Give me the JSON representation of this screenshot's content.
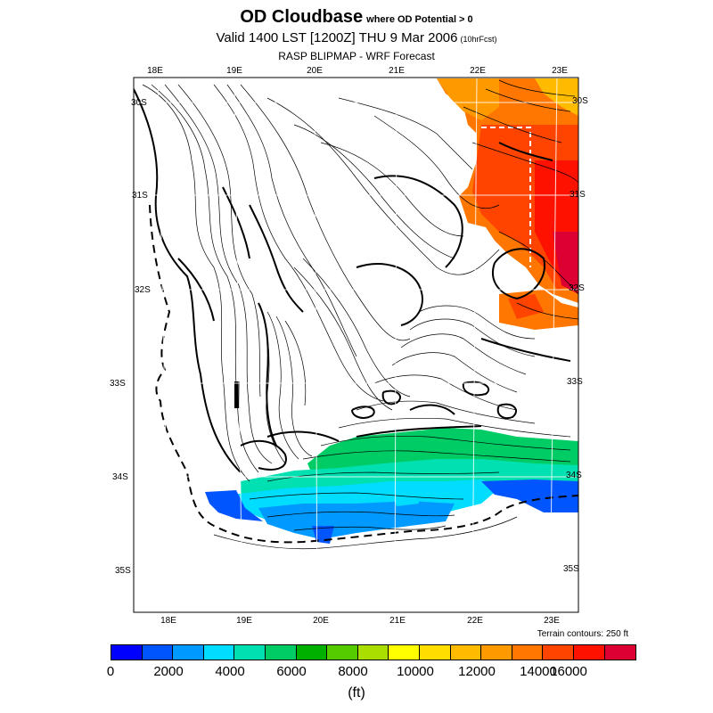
{
  "title": {
    "main": "OD Cloudbase",
    "qualifier": "where OD Potential > 0",
    "valid": "Valid 1400 LST [1200Z] THU 9 Mar 2006",
    "fcst": "(10hrFcst)",
    "source": "RASP BLIPMAP - WRF Forecast"
  },
  "axes": {
    "top_longitudes": [
      "18E",
      "19E",
      "20E",
      "21E",
      "22E",
      "23E"
    ],
    "bottom_longitudes": [
      "18E",
      "19E",
      "20E",
      "21E",
      "22E",
      "23E"
    ],
    "left_latitudes": [
      "30S",
      "31S",
      "32S",
      "33S",
      "34S",
      "35S"
    ],
    "right_latitudes": [
      "30S",
      "31S",
      "32S",
      "33S",
      "34S",
      "35S"
    ]
  },
  "terrain_note": "Terrain contours: 250 ft",
  "legend": {
    "labels": [
      "0",
      "2000",
      "4000",
      "6000",
      "8000",
      "10000",
      "12000",
      "14000",
      "16000"
    ],
    "units": "(ft)",
    "colors": [
      "#0000ff",
      "#0055ff",
      "#0099ff",
      "#00ddff",
      "#00e0b0",
      "#00cc66",
      "#00b000",
      "#55cc00",
      "#aadd00",
      "#ffff00",
      "#ffdd00",
      "#ffbb00",
      "#ff9900",
      "#ff7700",
      "#ff4400",
      "#ff1100",
      "#dd0033"
    ]
  }
}
